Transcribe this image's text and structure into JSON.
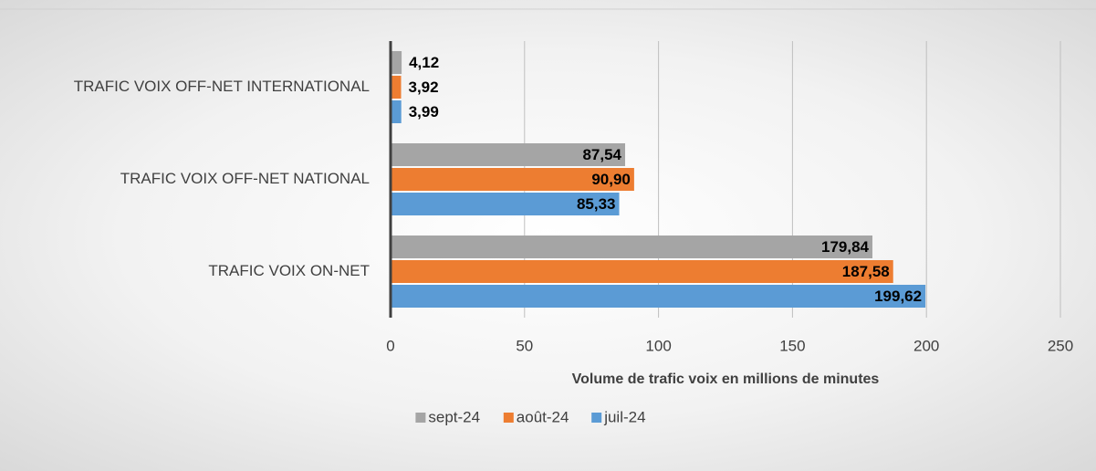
{
  "chart_data": {
    "type": "hbar",
    "xlabel": "Volume de trafic voix en millions de minutes",
    "categories": [
      "TRAFIC VOIX OFF-NET INTERNATIONAL",
      "TRAFIC VOIX OFF-NET NATIONAL",
      "TRAFIC VOIX ON-NET"
    ],
    "series": [
      {
        "name": "sept-24",
        "color": "#a5a5a5",
        "values": [
          4.12,
          87.54,
          179.84
        ],
        "value_labels": [
          "4,12",
          "87,54",
          "179,84"
        ]
      },
      {
        "name": "août-24",
        "color": "#ed7d31",
        "values": [
          3.92,
          90.9,
          187.58
        ],
        "value_labels": [
          "3,92",
          "90,90",
          "187,58"
        ]
      },
      {
        "name": "juil-24",
        "color": "#5b9bd5",
        "values": [
          3.99,
          85.33,
          199.62
        ],
        "value_labels": [
          "3,99",
          "85,33",
          "199,62"
        ]
      }
    ],
    "xlim": [
      0,
      250
    ],
    "xticks": [
      0,
      50,
      100,
      150,
      200,
      250
    ],
    "grid": true,
    "legend": "bottom"
  }
}
